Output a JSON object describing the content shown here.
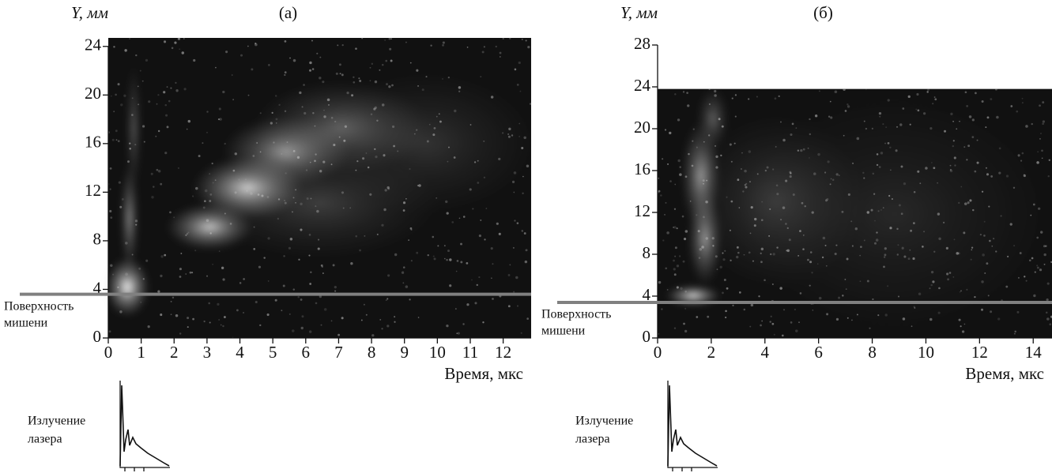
{
  "chart_data": [
    {
      "type": "image",
      "title": "(а)",
      "y_label": "Y, мм",
      "x_label": "Время, мкс",
      "xlim": [
        0,
        12.85
      ],
      "ylim": [
        0,
        24.7
      ],
      "image_ylim": [
        0,
        24.7
      ],
      "xticks": [
        0,
        1,
        2,
        3,
        4,
        5,
        6,
        7,
        8,
        9,
        10,
        11,
        12
      ],
      "yticks": [
        0,
        4,
        8,
        12,
        16,
        20,
        24
      ],
      "surface": {
        "label": [
          "Поверхность",
          "мишени"
        ],
        "y": 3.6,
        "color": "#808080"
      },
      "inset_label": [
        "Излучение",
        "лазера"
      ]
    },
    {
      "type": "image",
      "title": "(б)",
      "y_label": "Y, мм",
      "x_label": "Время, мкс",
      "xlim": [
        0,
        14.7
      ],
      "ylim": [
        0,
        28
      ],
      "image_ylim": [
        0,
        23.8
      ],
      "xticks": [
        0,
        2,
        4,
        6,
        8,
        10,
        12,
        14
      ],
      "yticks": [
        0,
        4,
        8,
        12,
        16,
        20,
        24,
        28
      ],
      "surface": {
        "label": [
          "Поверхность",
          "мишени"
        ],
        "y": 3.4,
        "color": "#808080"
      },
      "inset_label": [
        "Излучение",
        "лазера"
      ]
    }
  ]
}
